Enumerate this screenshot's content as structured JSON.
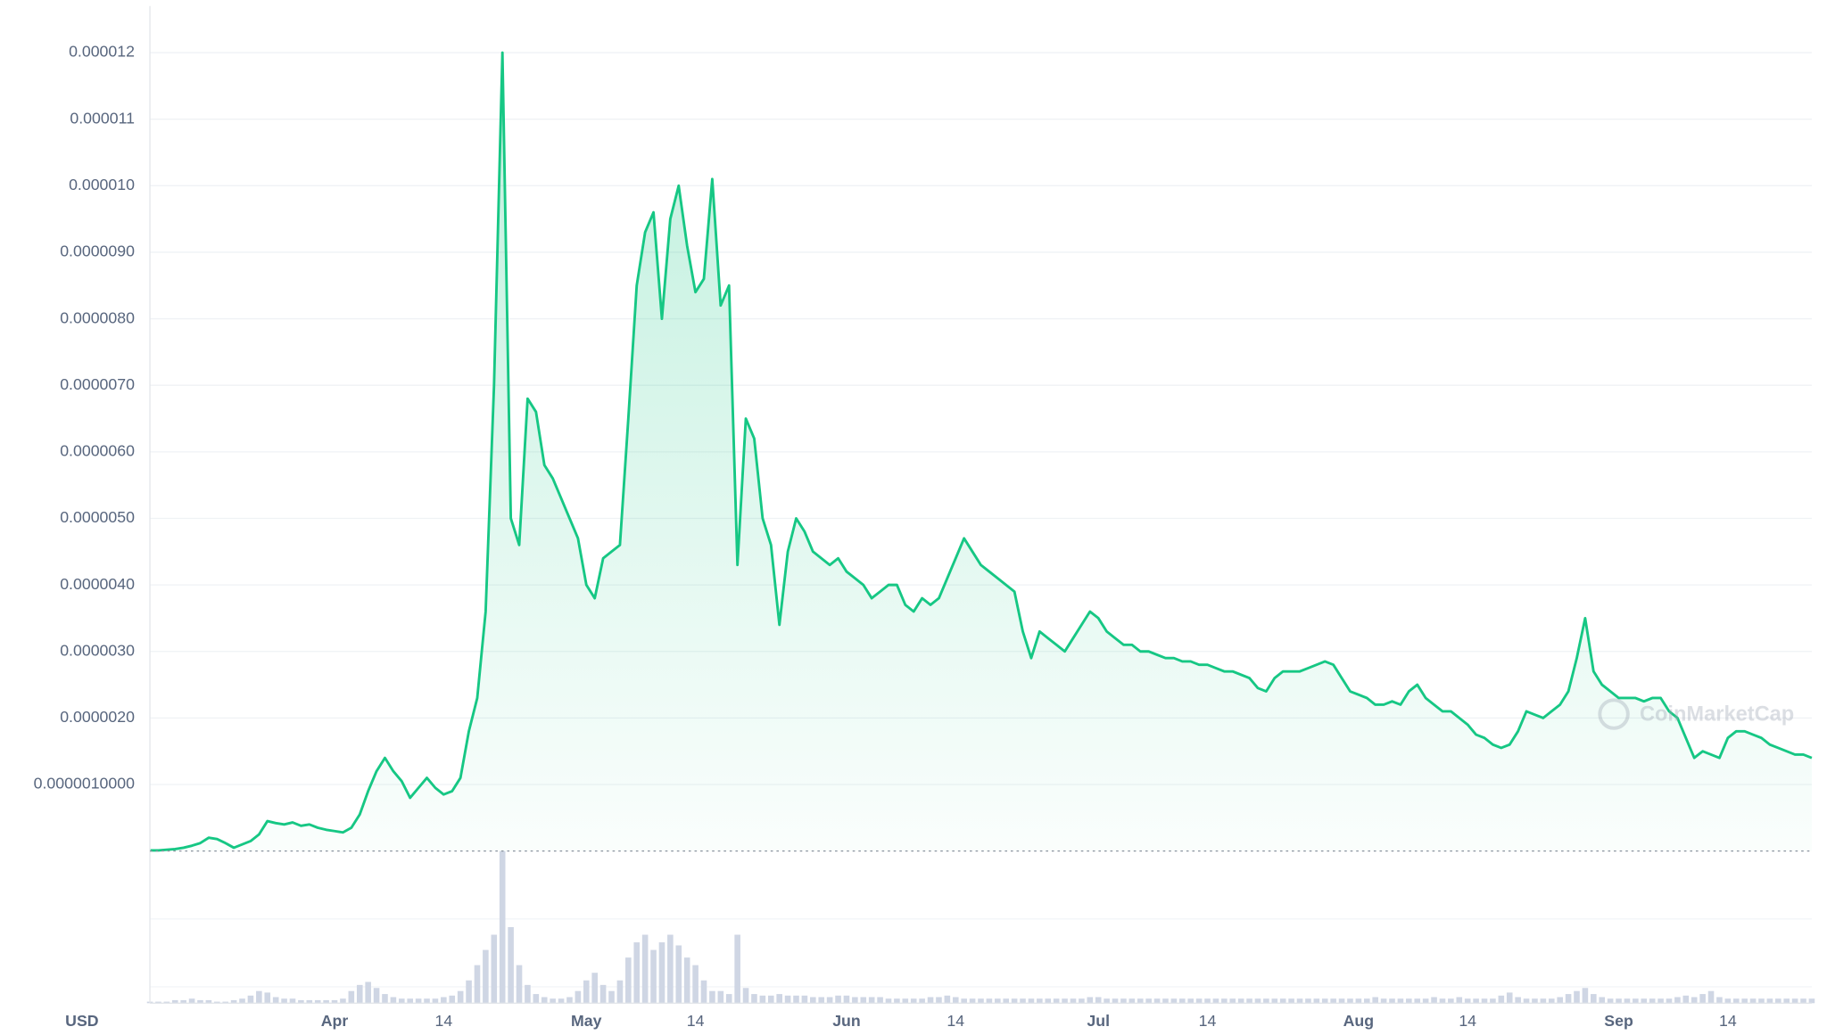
{
  "chart_data": {
    "type": "line",
    "y_axis_label": "USD",
    "watermark": "CoinMarketCap",
    "color": "#16c784",
    "volume_color": "#cfd6e4",
    "grid": true,
    "ylim": [
      0,
      1.27e-05
    ],
    "yticks": [
      {
        "value": 1e-06,
        "label": "0.0000010000"
      },
      {
        "value": 2e-06,
        "label": "0.0000020"
      },
      {
        "value": 3e-06,
        "label": "0.0000030"
      },
      {
        "value": 4e-06,
        "label": "0.0000040"
      },
      {
        "value": 5e-06,
        "label": "0.0000050"
      },
      {
        "value": 6e-06,
        "label": "0.0000060"
      },
      {
        "value": 7e-06,
        "label": "0.0000070"
      },
      {
        "value": 8e-06,
        "label": "0.0000080"
      },
      {
        "value": 9e-06,
        "label": "0.0000090"
      },
      {
        "value": 1e-05,
        "label": "0.000010"
      },
      {
        "value": 1.1e-05,
        "label": "0.000011"
      },
      {
        "value": 1.2e-05,
        "label": "0.000012"
      }
    ],
    "categories": [
      null,
      null,
      null,
      null,
      null,
      null,
      null,
      null,
      null,
      null,
      null,
      null,
      null,
      null,
      null,
      null,
      null,
      null,
      null,
      null,
      null,
      null,
      "Apr",
      null,
      null,
      null,
      null,
      null,
      null,
      null,
      null,
      null,
      null,
      null,
      null,
      "14",
      null,
      null,
      null,
      null,
      null,
      null,
      null,
      null,
      null,
      null,
      null,
      null,
      null,
      null,
      null,
      null,
      "May",
      null,
      null,
      null,
      null,
      null,
      null,
      null,
      null,
      null,
      null,
      null,
      null,
      "14",
      null,
      null,
      null,
      null,
      null,
      null,
      null,
      null,
      null,
      null,
      null,
      null,
      null,
      null,
      null,
      null,
      null,
      "Jun",
      null,
      null,
      null,
      null,
      null,
      null,
      null,
      null,
      null,
      null,
      null,
      null,
      "14",
      null,
      null,
      null,
      null,
      null,
      null,
      null,
      null,
      null,
      null,
      null,
      null,
      null,
      null,
      null,
      null,
      "Jul",
      null,
      null,
      null,
      null,
      null,
      null,
      null,
      null,
      null,
      null,
      null,
      null,
      "14",
      null,
      null,
      null,
      null,
      null,
      null,
      null,
      null,
      null,
      null,
      null,
      null,
      null,
      null,
      null,
      null,
      null,
      "Aug",
      null,
      null,
      null,
      null,
      null,
      null,
      null,
      null,
      null,
      null,
      null,
      null,
      "14",
      null,
      null,
      null,
      null,
      null,
      null,
      null,
      null,
      null,
      null,
      null,
      null,
      null,
      null,
      null,
      null,
      null,
      "Sep",
      null,
      null,
      null,
      null,
      null,
      null,
      null,
      null,
      null,
      null,
      null,
      null,
      "14",
      null,
      null,
      null,
      null,
      null,
      null,
      null,
      null,
      null,
      null
    ],
    "values": [
      1e-08,
      1e-08,
      2e-08,
      3e-08,
      5e-08,
      8e-08,
      1.2e-07,
      2e-07,
      1.8e-07,
      1.2e-07,
      5e-08,
      1e-07,
      1.5e-07,
      2.5e-07,
      4.5e-07,
      4.2e-07,
      4e-07,
      4.3e-07,
      3.8e-07,
      4e-07,
      3.5e-07,
      3.2e-07,
      3e-07,
      2.8e-07,
      3.5e-07,
      5.5e-07,
      9e-07,
      1.2e-06,
      1.4e-06,
      1.2e-06,
      1.05e-06,
      8e-07,
      9.5e-07,
      1.1e-06,
      9.5e-07,
      8.5e-07,
      9e-07,
      1.1e-06,
      1.8e-06,
      2.3e-06,
      3.6e-06,
      7e-06,
      1.2e-05,
      5e-06,
      4.6e-06,
      6.8e-06,
      6.6e-06,
      5.8e-06,
      5.6e-06,
      5.3e-06,
      5e-06,
      4.7e-06,
      4e-06,
      3.8e-06,
      4.4e-06,
      4.5e-06,
      4.6e-06,
      6.5e-06,
      8.5e-06,
      9.3e-06,
      9.6e-06,
      8e-06,
      9.5e-06,
      1e-05,
      9.1e-06,
      8.4e-06,
      8.6e-06,
      1.01e-05,
      8.2e-06,
      8.5e-06,
      4.3e-06,
      6.5e-06,
      6.2e-06,
      5e-06,
      4.6e-06,
      3.4e-06,
      4.5e-06,
      5e-06,
      4.8e-06,
      4.5e-06,
      4.4e-06,
      4.3e-06,
      4.4e-06,
      4.2e-06,
      4.1e-06,
      4e-06,
      3.8e-06,
      3.9e-06,
      4e-06,
      4e-06,
      3.7e-06,
      3.6e-06,
      3.8e-06,
      3.7e-06,
      3.8e-06,
      4.1e-06,
      4.4e-06,
      4.7e-06,
      4.5e-06,
      4.3e-06,
      4.2e-06,
      4.1e-06,
      4e-06,
      3.9e-06,
      3.3e-06,
      2.9e-06,
      3.3e-06,
      3.2e-06,
      3.1e-06,
      3e-06,
      3.2e-06,
      3.4e-06,
      3.6e-06,
      3.5e-06,
      3.3e-06,
      3.2e-06,
      3.1e-06,
      3.1e-06,
      3e-06,
      3e-06,
      2.95e-06,
      2.9e-06,
      2.9e-06,
      2.85e-06,
      2.85e-06,
      2.8e-06,
      2.8e-06,
      2.75e-06,
      2.7e-06,
      2.7e-06,
      2.65e-06,
      2.6e-06,
      2.45e-06,
      2.4e-06,
      2.6e-06,
      2.7e-06,
      2.7e-06,
      2.7e-06,
      2.75e-06,
      2.8e-06,
      2.85e-06,
      2.8e-06,
      2.6e-06,
      2.4e-06,
      2.35e-06,
      2.3e-06,
      2.2e-06,
      2.2e-06,
      2.25e-06,
      2.2e-06,
      2.4e-06,
      2.5e-06,
      2.3e-06,
      2.2e-06,
      2.1e-06,
      2.1e-06,
      2e-06,
      1.9e-06,
      1.75e-06,
      1.7e-06,
      1.6e-06,
      1.55e-06,
      1.6e-06,
      1.8e-06,
      2.1e-06,
      2.05e-06,
      2e-06,
      2.1e-06,
      2.2e-06,
      2.4e-06,
      2.9e-06,
      3.5e-06,
      2.7e-06,
      2.5e-06,
      2.4e-06,
      2.3e-06,
      2.3e-06,
      2.3e-06,
      2.25e-06,
      2.3e-06,
      2.3e-06,
      2.1e-06,
      2e-06,
      1.7e-06,
      1.4e-06,
      1.5e-06,
      1.45e-06,
      1.4e-06,
      1.7e-06,
      1.8e-06,
      1.8e-06,
      1.75e-06,
      1.7e-06,
      1.6e-06,
      1.55e-06,
      1.5e-06,
      1.45e-06,
      1.45e-06,
      1.4e-06
    ],
    "volume_lim": [
      0,
      100
    ],
    "volume": [
      1,
      1,
      1,
      2,
      2,
      3,
      2,
      2,
      1,
      1,
      2,
      3,
      5,
      8,
      7,
      4,
      3,
      3,
      2,
      2,
      2,
      2,
      2,
      3,
      8,
      12,
      14,
      10,
      6,
      4,
      3,
      3,
      3,
      3,
      3,
      4,
      5,
      8,
      15,
      25,
      35,
      45,
      100,
      50,
      25,
      12,
      6,
      4,
      3,
      3,
      4,
      8,
      15,
      20,
      12,
      8,
      15,
      30,
      40,
      45,
      35,
      40,
      45,
      38,
      30,
      25,
      15,
      8,
      8,
      6,
      45,
      10,
      6,
      5,
      5,
      6,
      5,
      5,
      5,
      4,
      4,
      4,
      5,
      5,
      4,
      4,
      4,
      4,
      3,
      3,
      3,
      3,
      3,
      4,
      4,
      5,
      4,
      3,
      3,
      3,
      3,
      3,
      3,
      3,
      3,
      3,
      3,
      3,
      3,
      3,
      3,
      3,
      4,
      4,
      3,
      3,
      3,
      3,
      3,
      3,
      3,
      3,
      3,
      3,
      3,
      3,
      3,
      3,
      3,
      3,
      3,
      3,
      3,
      3,
      3,
      3,
      3,
      3,
      3,
      3,
      3,
      3,
      3,
      3,
      3,
      3,
      4,
      3,
      3,
      3,
      3,
      3,
      3,
      4,
      3,
      3,
      4,
      3,
      3,
      3,
      3,
      5,
      7,
      4,
      3,
      3,
      3,
      3,
      4,
      6,
      8,
      10,
      6,
      4,
      3,
      3,
      3,
      3,
      3,
      3,
      3,
      3,
      4,
      5,
      4,
      6,
      8,
      4,
      3,
      3,
      3,
      3,
      3,
      3,
      3,
      3,
      3,
      3,
      3
    ]
  }
}
